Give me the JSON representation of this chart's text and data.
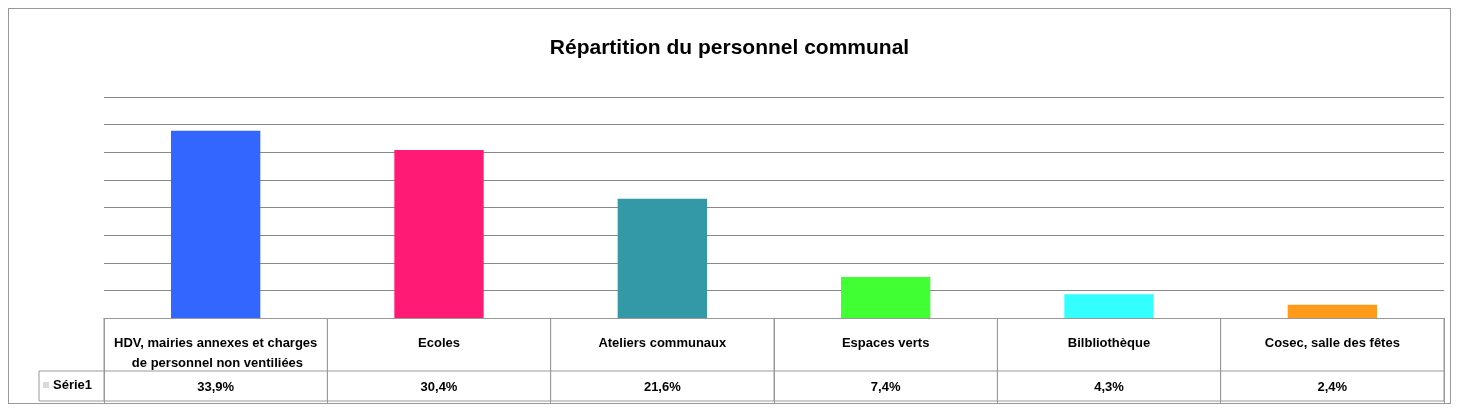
{
  "chart_data": {
    "type": "bar",
    "title": "Répartition du personnel communal",
    "categories": [
      "HDV, mairies annexes et charges de personnel non ventiliées",
      "Ecoles",
      "Ateliers communaux",
      "Espaces verts",
      "Bilbliothèque",
      "Cosec, salle des fêtes"
    ],
    "series": [
      {
        "name": "Série1",
        "color": "#d9d9d9",
        "colors": [
          "#3366ff",
          "#ff1a75",
          "#3399a6",
          "#40ff33",
          "#33ffff",
          "#ff9a1a"
        ],
        "values": [
          33.9,
          30.4,
          21.6,
          7.4,
          4.3,
          2.4
        ],
        "value_labels": [
          "33,9%",
          "30,4%",
          "21,6%",
          "7,4%",
          "4,3%",
          "2,4%"
        ]
      }
    ],
    "ylim": [
      0,
      40
    ],
    "yticks": [
      {
        "value": 0,
        "label": null
      },
      {
        "value": 5,
        "label": null
      },
      {
        "value": 10,
        "label": null
      },
      {
        "value": 15,
        "label": null
      },
      {
        "value": 20,
        "label": null
      },
      {
        "value": 25,
        "label": null
      },
      {
        "value": 30,
        "label": null
      },
      {
        "value": 35,
        "label": null
      },
      {
        "value": 40,
        "label": null
      }
    ],
    "tick_labels": "x",
    "grid": "y",
    "legend": "bottom left"
  }
}
